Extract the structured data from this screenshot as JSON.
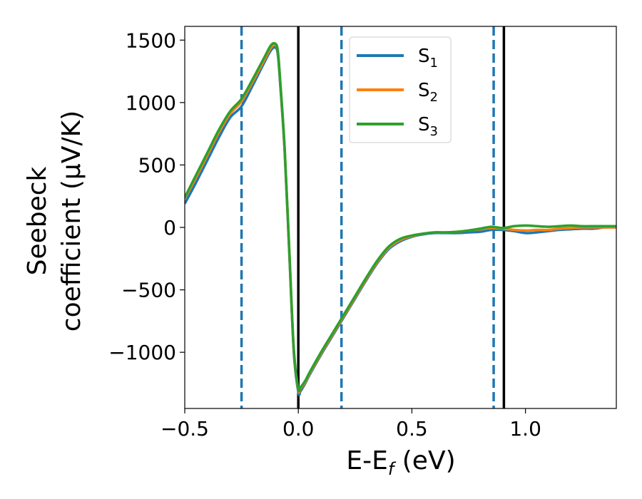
{
  "chart_data": {
    "type": "line",
    "xlabel_main": "E-E",
    "xlabel_sub": "f",
    "xlabel_tail": " (eV)",
    "ylabel_line1": "Seebeck",
    "ylabel_line2": "coefficient  (μV/K)",
    "xlim": [
      -0.5,
      1.4
    ],
    "ylim": [
      -1450,
      1610
    ],
    "x_ticks": [
      {
        "value": -0.5,
        "label": "−0.5"
      },
      {
        "value": 0.0,
        "label": "0.0"
      },
      {
        "value": 0.5,
        "label": "0.5"
      },
      {
        "value": 1.0,
        "label": "1.0"
      }
    ],
    "y_ticks": [
      {
        "value": 1500,
        "label": "1500"
      },
      {
        "value": 1000,
        "label": "1000"
      },
      {
        "value": 500,
        "label": "500"
      },
      {
        "value": 0,
        "label": "0"
      },
      {
        "value": -500,
        "label": "−500"
      },
      {
        "value": -1000,
        "label": "−1000"
      }
    ],
    "vlines": [
      {
        "x": -0.25,
        "style": "dashed",
        "color": "#1f77b4"
      },
      {
        "x": 0.0,
        "style": "solid",
        "color": "#000000"
      },
      {
        "x": 0.19,
        "style": "dashed",
        "color": "#1f77b4"
      },
      {
        "x": 0.86,
        "style": "dashed",
        "color": "#1f77b4"
      },
      {
        "x": 0.905,
        "style": "solid",
        "color": "#000000"
      }
    ],
    "legend_position": "upper center",
    "series": [
      {
        "name": "S",
        "sub": "1",
        "color": "#1f77b4",
        "x": [
          -0.5,
          -0.45,
          -0.4,
          -0.35,
          -0.3,
          -0.25,
          -0.2,
          -0.15,
          -0.12,
          -0.1,
          -0.09,
          -0.08,
          -0.06,
          -0.04,
          -0.02,
          0.0,
          0.01,
          0.03,
          0.05,
          0.1,
          0.15,
          0.2,
          0.25,
          0.3,
          0.35,
          0.4,
          0.45,
          0.5,
          0.55,
          0.6,
          0.65,
          0.7,
          0.75,
          0.8,
          0.85,
          0.9,
          0.95,
          1.0,
          1.05,
          1.1,
          1.15,
          1.2,
          1.25,
          1.3,
          1.35,
          1.4
        ],
        "y": [
          190,
          360,
          540,
          720,
          880,
          970,
          1140,
          1320,
          1420,
          1440,
          1380,
          1150,
          600,
          -200,
          -1000,
          -1320,
          -1310,
          -1250,
          -1180,
          -1020,
          -870,
          -720,
          -570,
          -420,
          -280,
          -170,
          -110,
          -75,
          -55,
          -45,
          -45,
          -45,
          -40,
          -35,
          -20,
          -20,
          -30,
          -45,
          -40,
          -30,
          -20,
          -15,
          -10,
          -10,
          0,
          0
        ]
      },
      {
        "name": "S",
        "sub": "2",
        "color": "#ff7f0e",
        "x": [
          -0.5,
          -0.45,
          -0.4,
          -0.35,
          -0.3,
          -0.25,
          -0.2,
          -0.15,
          -0.12,
          -0.1,
          -0.09,
          -0.08,
          -0.06,
          -0.04,
          -0.02,
          0.0,
          0.01,
          0.03,
          0.05,
          0.1,
          0.15,
          0.2,
          0.25,
          0.3,
          0.35,
          0.4,
          0.45,
          0.5,
          0.55,
          0.6,
          0.65,
          0.7,
          0.75,
          0.8,
          0.85,
          0.9,
          0.95,
          1.0,
          1.05,
          1.1,
          1.15,
          1.2,
          1.25,
          1.3,
          1.35,
          1.4
        ],
        "y": [
          230,
          400,
          580,
          760,
          910,
          1010,
          1170,
          1340,
          1440,
          1460,
          1400,
          1170,
          620,
          -180,
          -980,
          -1300,
          -1290,
          -1240,
          -1170,
          -1010,
          -860,
          -710,
          -560,
          -410,
          -270,
          -160,
          -100,
          -70,
          -50,
          -40,
          -40,
          -35,
          -25,
          -15,
          -5,
          -10,
          -20,
          -25,
          -20,
          -20,
          -10,
          -5,
          0,
          0,
          0,
          0
        ]
      },
      {
        "name": "S",
        "sub": "3",
        "color": "#2ca02c",
        "x": [
          -0.5,
          -0.45,
          -0.4,
          -0.35,
          -0.3,
          -0.25,
          -0.2,
          -0.15,
          -0.12,
          -0.1,
          -0.09,
          -0.08,
          -0.06,
          -0.04,
          -0.02,
          0.0,
          0.01,
          0.03,
          0.05,
          0.1,
          0.15,
          0.2,
          0.25,
          0.3,
          0.35,
          0.4,
          0.45,
          0.5,
          0.55,
          0.6,
          0.65,
          0.7,
          0.75,
          0.8,
          0.85,
          0.9,
          0.95,
          1.0,
          1.05,
          1.1,
          1.15,
          1.2,
          1.25,
          1.3,
          1.35,
          1.4
        ],
        "y": [
          240,
          420,
          600,
          780,
          930,
          1030,
          1190,
          1360,
          1460,
          1470,
          1410,
          1180,
          630,
          -170,
          -970,
          -1290,
          -1280,
          -1230,
          -1160,
          -1000,
          -850,
          -700,
          -550,
          -400,
          -260,
          -150,
          -90,
          -65,
          -50,
          -40,
          -40,
          -35,
          -25,
          -10,
          5,
          -5,
          10,
          15,
          10,
          5,
          10,
          15,
          10,
          10,
          10,
          10
        ]
      }
    ]
  }
}
